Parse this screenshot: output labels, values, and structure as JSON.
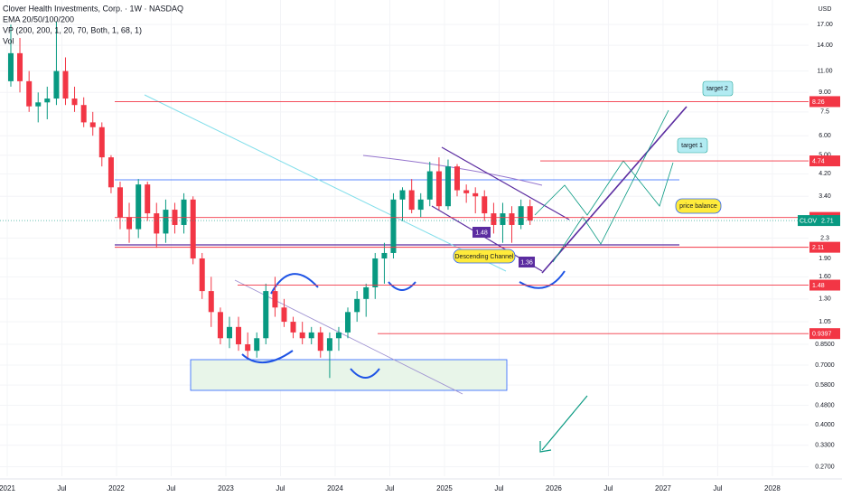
{
  "chart_data": {
    "type": "candlestick",
    "title": "Clover Health Investments, Corp. · 1W · NASDAQ",
    "indicators": [
      "EMA 20/50/100/200",
      "VP (200, 200, 1, 20, 70, Both, 1, 68, 1)",
      "Vol"
    ],
    "currency": "USD",
    "x": [
      2021,
      2021.083,
      2021.167,
      2021.25,
      2021.333,
      2021.417,
      2021.5,
      2021.583,
      2021.667,
      2021.75,
      2021.833,
      2021.917,
      2022,
      2022.083,
      2022.167,
      2022.25,
      2022.333,
      2022.417,
      2022.5,
      2022.583,
      2022.667,
      2022.75,
      2022.833,
      2022.917,
      2023,
      2023.083,
      2023.167,
      2023.25,
      2023.333,
      2023.417,
      2023.5,
      2023.583,
      2023.667,
      2023.75,
      2023.833,
      2023.917,
      2024,
      2024.083,
      2024.167,
      2024.25,
      2024.333,
      2024.417,
      2024.5,
      2024.583,
      2024.667,
      2024.75,
      2024.833,
      2024.917,
      2025,
      2025.083,
      2025.167,
      2025.25,
      2025.333,
      2025.417,
      2025.5,
      2025.583,
      2025.667,
      2025.75
    ],
    "open": [
      10,
      13,
      10,
      7.9,
      8.2,
      8.5,
      11,
      8.5,
      8,
      6.8,
      6.5,
      4.9,
      3.7,
      2.8,
      2.5,
      3.8,
      2.9,
      2.4,
      3.0,
      2.6,
      3.3,
      1.9,
      1.4,
      1.15,
      0.9,
      1.0,
      0.85,
      0.8,
      0.9,
      1.4,
      1.2,
      1.05,
      0.95,
      0.9,
      0.95,
      0.8,
      0.9,
      0.95,
      1.15,
      1.3,
      1.45,
      1.9,
      2.0,
      3.3,
      3.6,
      3.0,
      3.3,
      4.3,
      3.1,
      4.5,
      3.6,
      3.5,
      3.4,
      2.9,
      2.6,
      2.9,
      2.6,
      3.1
    ],
    "high": [
      17,
      15,
      11,
      9,
      9.5,
      17.5,
      12.5,
      9.5,
      8.6,
      7.5,
      6.8,
      5,
      3.9,
      3.2,
      4.0,
      3.9,
      3.2,
      3.3,
      3.2,
      3.5,
      3.4,
      2.0,
      1.6,
      1.2,
      1.1,
      1.1,
      0.95,
      0.95,
      1.5,
      1.6,
      1.3,
      1.1,
      1.05,
      1.0,
      1.0,
      0.95,
      1.0,
      1.2,
      1.4,
      1.5,
      2.0,
      2.2,
      3.5,
      3.7,
      4.0,
      3.5,
      4.7,
      4.9,
      4.8,
      4.6,
      3.8,
      3.7,
      3.6,
      3.2,
      3.2,
      3.1,
      3.3,
      3.3
    ],
    "low": [
      9.5,
      9,
      7.5,
      6.8,
      7,
      8,
      8,
      7.5,
      6.5,
      6,
      4.5,
      3.5,
      2.5,
      2.2,
      2.3,
      2.7,
      2.1,
      2.2,
      2.4,
      2.4,
      1.8,
      1.3,
      1.0,
      0.85,
      0.82,
      0.8,
      0.75,
      0.75,
      0.85,
      1.1,
      1.0,
      0.9,
      0.85,
      0.85,
      0.75,
      0.62,
      0.8,
      0.9,
      1.05,
      1.1,
      1.3,
      1.5,
      1.9,
      2.7,
      2.9,
      2.8,
      3.1,
      3.0,
      3.0,
      3.4,
      3.2,
      2.9,
      2.7,
      2.4,
      2.2,
      2.2,
      2.5,
      2.6
    ],
    "close": [
      13,
      10,
      7.9,
      8.2,
      8.5,
      11,
      8.5,
      8,
      6.8,
      6.5,
      4.9,
      3.7,
      2.8,
      2.5,
      3.8,
      2.9,
      2.4,
      3.0,
      2.6,
      3.3,
      1.9,
      1.4,
      1.15,
      0.9,
      1.0,
      0.85,
      0.8,
      0.9,
      1.4,
      1.2,
      1.05,
      0.95,
      0.9,
      0.95,
      0.8,
      0.9,
      0.95,
      1.15,
      1.3,
      1.45,
      1.9,
      2.0,
      3.3,
      3.6,
      3.0,
      3.3,
      4.3,
      3.1,
      4.5,
      3.6,
      3.5,
      3.4,
      2.9,
      2.6,
      2.9,
      2.6,
      3.1,
      2.71
    ],
    "up_color": "#089981",
    "down_color": "#f23645",
    "log_y": true,
    "ylim": [
      0.247,
      21.4
    ],
    "yticks": [
      {
        "value": 17,
        "label": "17.00"
      },
      {
        "value": 14,
        "label": "14.00"
      },
      {
        "value": 11,
        "label": "11.00"
      },
      {
        "value": 9,
        "label": "9.00"
      },
      7.5,
      {
        "value": 6,
        "label": "6.00"
      },
      {
        "value": 5,
        "label": "5.00"
      },
      {
        "value": 4.2,
        "label": "4.20"
      },
      {
        "value": 3.4,
        "label": "3.40"
      },
      2.3,
      {
        "value": 1.9,
        "label": "1.90"
      },
      {
        "value": 1.6,
        "label": "1.60"
      },
      {
        "value": 1.3,
        "label": "1.30"
      },
      1.05,
      {
        "value": 0.85,
        "label": "0.8500"
      },
      {
        "value": 0.7,
        "label": "0.7000"
      },
      {
        "value": 0.58,
        "label": "0.5800"
      },
      {
        "value": 0.48,
        "label": "0.4800"
      },
      {
        "value": 0.4,
        "label": "0.4000"
      },
      {
        "value": 0.33,
        "label": "0.3300"
      },
      {
        "value": 0.27,
        "label": "0.2700"
      }
    ],
    "xlim": [
      2020.934,
      2028.331
    ],
    "xticks": [
      2021,
      {
        "value": 2021.5,
        "label": "Jul"
      },
      2022,
      {
        "value": 2022.5,
        "label": "Jul"
      },
      2023,
      {
        "value": 2023.5,
        "label": "Jul"
      },
      2024,
      {
        "value": 2024.5,
        "label": "Jul"
      },
      2025,
      {
        "value": 2025.5,
        "label": "Jul"
      },
      2026,
      {
        "value": 2026.5,
        "label": "Jul"
      },
      2027,
      {
        "value": 2027.5,
        "label": "Jul"
      },
      2028
    ],
    "levels": [
      {
        "value": 8.26,
        "color": "#f23645"
      },
      {
        "value": 4.74,
        "color": "#f23645"
      },
      {
        "value": 2.79,
        "color": "#f23645"
      },
      {
        "value": 2.11,
        "color": "#f23645"
      },
      {
        "value": 1.48,
        "color": "#f23645"
      },
      {
        "value": 0.9397,
        "color": "#f23645"
      }
    ],
    "last_price": {
      "symbol": "CLOV",
      "value": 2.71,
      "color": "#089981"
    },
    "annotations": [
      "target 2",
      "target 1",
      "price balance",
      "Descending Channel"
    ],
    "channel_labels": [
      1.48,
      1.36
    ]
  }
}
